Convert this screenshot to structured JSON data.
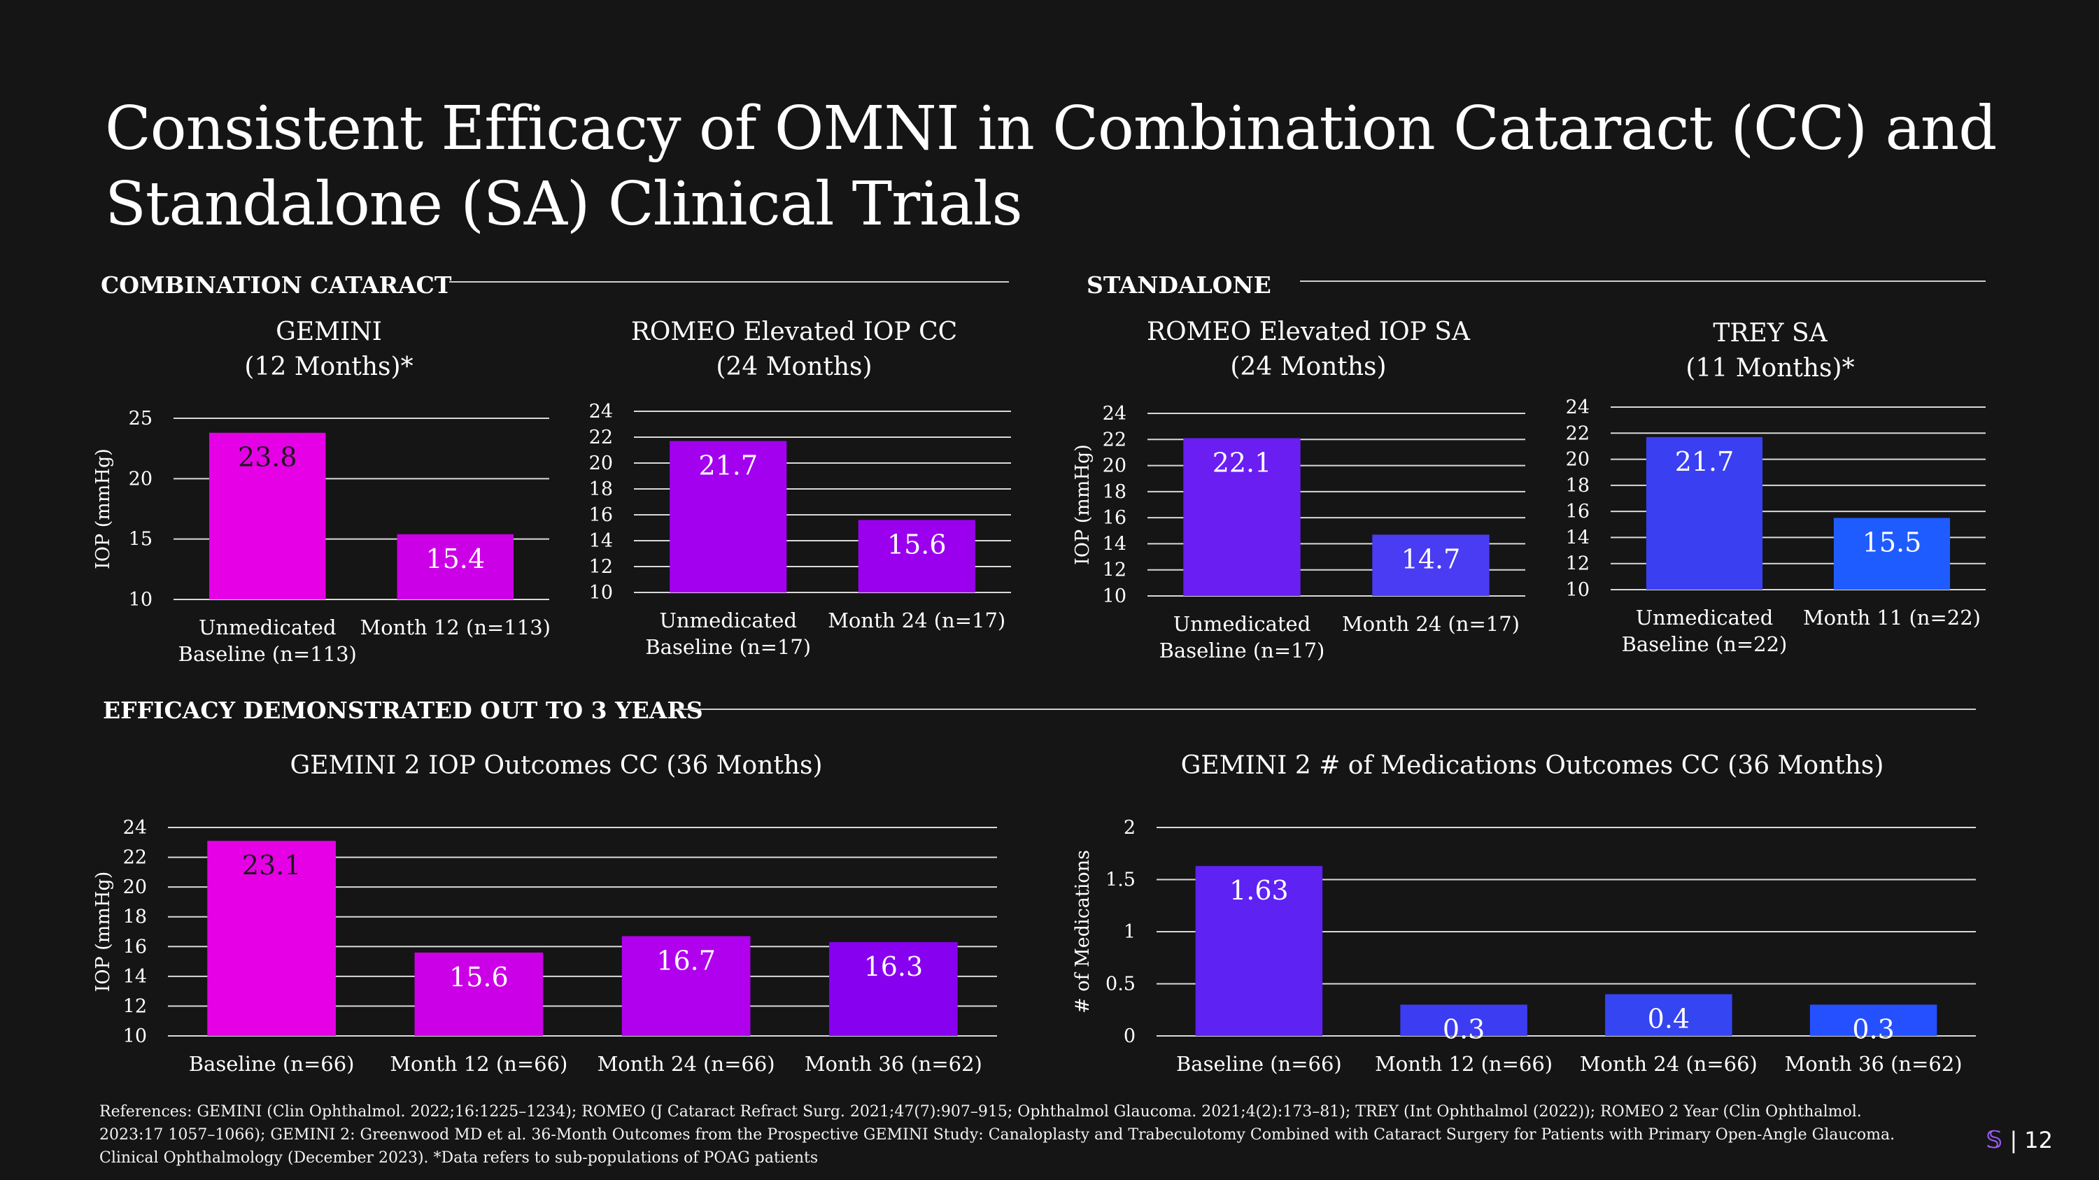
{
  "title": "Consistent Efficacy of OMNI in Combination Cataract (CC) and Standalone (SA) Clinical Trials",
  "sections": {
    "combination": "COMBINATION CATARACT",
    "standalone": "STANDALONE",
    "efficacy": "EFFICACY DEMONSTRATED OUT TO 3 YEARS"
  },
  "references": "References: GEMINI (Clin Ophthalmol. 2022;16:1225–1234); ROMEO (J Cataract Refract Surg. 2021;47(7):907–915; Ophthalmol Glaucoma. 2021;4(2):173–81); TREY (Int Ophthalmol (2022)); ROMEO 2 Year (Clin Ophthalmol. 2023:17 1057–1066); GEMINI 2: Greenwood MD et al. 36-Month Outcomes from the Prospective GEMINI Study: Canaloplasty and Trabeculotomy Combined with Cataract Surgery for Patients with Primary Open-Angle Glaucoma. Clinical Ophthalmology (December 2023). *Data refers to sub-populations of POAG patients",
  "footer": {
    "logo": "𝕊",
    "separator": "|",
    "page_number": "12"
  },
  "chart_data": [
    {
      "type": "bar",
      "title": "GEMINI\n(12 Months)*",
      "ylabel": "IOP (mmHg)",
      "categories": [
        "Unmedicated\nBaseline (n=113)",
        "Month 12 (n=113)"
      ],
      "values": [
        23.8,
        15.4
      ],
      "labels": [
        "23.8",
        "15.4"
      ],
      "colors": [
        "#e600e6",
        "#cc00e6"
      ],
      "label_colors": [
        "#1a1a1a",
        "#ffffff"
      ],
      "ylim": [
        10,
        25
      ],
      "yticks": [
        10,
        15,
        20,
        25
      ],
      "grid": true
    },
    {
      "type": "bar",
      "title": "ROMEO Elevated IOP CC\n(24 Months)",
      "ylabel": "",
      "categories": [
        "Unmedicated\nBaseline (n=17)",
        "Month 24 (n=17)"
      ],
      "values": [
        21.7,
        15.6
      ],
      "labels": [
        "21.7",
        "15.6"
      ],
      "colors": [
        "#a300f0",
        "#9a00ee"
      ],
      "label_colors": [
        "#ffffff",
        "#ffffff"
      ],
      "ylim": [
        10,
        24
      ],
      "yticks": [
        10,
        12,
        14,
        16,
        18,
        20,
        22,
        24
      ],
      "grid": true
    },
    {
      "type": "bar",
      "title": "ROMEO Elevated IOP SA\n(24 Months)",
      "ylabel": "IOP (mmHg)",
      "categories": [
        "Unmedicated\nBaseline (n=17)",
        "Month 24 (n=17)"
      ],
      "values": [
        22.1,
        14.7
      ],
      "labels": [
        "22.1",
        "14.7"
      ],
      "colors": [
        "#6a1ef2",
        "#4a3cf2"
      ],
      "label_colors": [
        "#ffffff",
        "#ffffff"
      ],
      "ylim": [
        10,
        24
      ],
      "yticks": [
        10,
        12,
        14,
        16,
        18,
        20,
        22,
        24
      ],
      "grid": true
    },
    {
      "type": "bar",
      "title": "TREY SA\n(11 Months)*",
      "ylabel": "",
      "categories": [
        "Unmedicated\nBaseline (n=22)",
        "Month 11 (n=22)"
      ],
      "values": [
        21.7,
        15.5
      ],
      "labels": [
        "21.7",
        "15.5"
      ],
      "colors": [
        "#3a3ff2",
        "#1f5cff"
      ],
      "label_colors": [
        "#ffffff",
        "#ffffff"
      ],
      "ylim": [
        10,
        24
      ],
      "yticks": [
        10,
        12,
        14,
        16,
        18,
        20,
        22,
        24
      ],
      "grid": true
    },
    {
      "type": "bar",
      "title": "GEMINI 2 IOP Outcomes CC (36 Months)",
      "ylabel": "IOP (mmHg)",
      "categories": [
        "Baseline (n=66)",
        "Month 12 (n=66)",
        "Month 24 (n=66)",
        "Month 36 (n=62)"
      ],
      "values": [
        23.1,
        15.6,
        16.7,
        16.3
      ],
      "labels": [
        "23.1",
        "15.6",
        "16.7",
        "16.3"
      ],
      "colors": [
        "#e600e6",
        "#cc00e6",
        "#b000ee",
        "#8800f0"
      ],
      "label_colors": [
        "#1a1a1a",
        "#ffffff",
        "#ffffff",
        "#ffffff"
      ],
      "ylim": [
        10,
        24
      ],
      "yticks": [
        10,
        12,
        14,
        16,
        18,
        20,
        22,
        24
      ],
      "grid": true
    },
    {
      "type": "bar",
      "title": "GEMINI 2 # of Medications Outcomes CC (36 Months)",
      "ylabel": "# of Medications",
      "categories": [
        "Baseline (n=66)",
        "Month 12 (n=66)",
        "Month 24 (n=66)",
        "Month 36 (n=62)"
      ],
      "values": [
        1.63,
        0.3,
        0.4,
        0.3
      ],
      "labels": [
        "1.63",
        "0.3",
        "0.4",
        "0.3"
      ],
      "colors": [
        "#5e22f2",
        "#3c3cf2",
        "#3545f2",
        "#2450ff"
      ],
      "label_colors": [
        "#ffffff",
        "#ffffff",
        "#ffffff",
        "#ffffff"
      ],
      "ylim": [
        0,
        2
      ],
      "yticks": [
        0,
        0.5,
        1,
        1.5,
        2
      ],
      "ytick_labels": [
        "0",
        "0.5",
        "1",
        "1.5",
        "2"
      ],
      "grid": true
    }
  ]
}
